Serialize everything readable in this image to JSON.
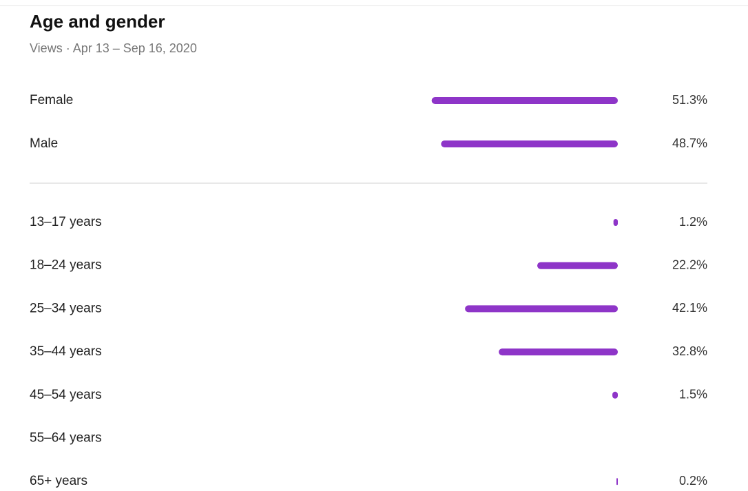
{
  "title": "Age and gender",
  "subtitle": "Views · Apr 13 – Sep 16, 2020",
  "chart_data": [
    {
      "type": "hbar",
      "categories": [
        "Female",
        "Male"
      ],
      "values": [
        51.3,
        48.7
      ],
      "value_labels": [
        "51.3%",
        "48.7%"
      ],
      "color": "#8e35c8"
    },
    {
      "type": "hbar",
      "categories": [
        "13–17 years",
        "18–24 years",
        "25–34 years",
        "35–44 years",
        "45–54 years",
        "55–64 years",
        "65+ years"
      ],
      "values": [
        1.2,
        22.2,
        42.1,
        32.8,
        1.5,
        null,
        0.2
      ],
      "value_labels": [
        "1.2%",
        "22.2%",
        "42.1%",
        "32.8%",
        "1.5%",
        null,
        "0.2%"
      ],
      "color": "#8e35c8"
    }
  ]
}
